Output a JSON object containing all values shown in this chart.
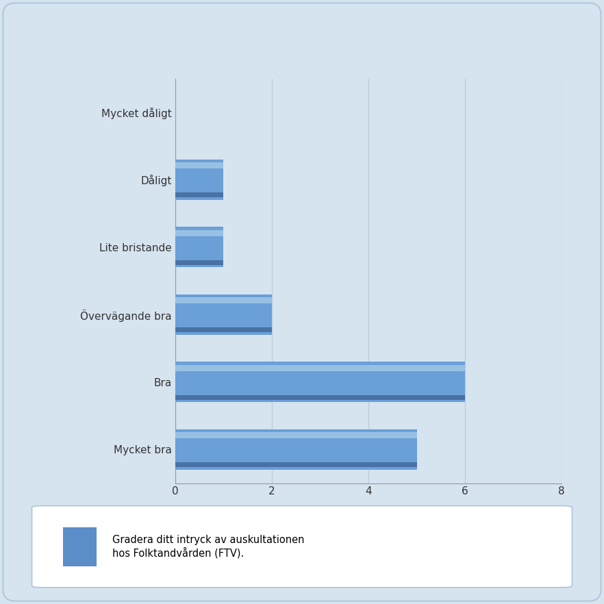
{
  "categories": [
    "Mycket bra",
    "Bra",
    "Övervägande bra",
    "Lite bristande",
    "Dåligt",
    "Mycket dåligt"
  ],
  "values": [
    5,
    6,
    2,
    1,
    1,
    0
  ],
  "xlim": [
    0,
    8
  ],
  "xticks": [
    0,
    2,
    4,
    6,
    8
  ],
  "bar_color_main": "#6a9fd8",
  "bar_color_top": "#a8cce8",
  "bar_color_bottom": "#3a6090",
  "background_color": "#d6e4f0",
  "plot_bg_color": "#d6e4f0",
  "legend_label_line1": "Gradera ditt intryck av auskultationen",
  "legend_label_line2": "hos Folktandvården (FTV).",
  "legend_color": "#5b8dc8",
  "grid_color": "#c5d5e8",
  "tick_fontsize": 11,
  "label_fontsize": 11,
  "legend_fontsize": 10.5,
  "outer_bg": "#d6e4f0",
  "white_bg": "#ffffff"
}
